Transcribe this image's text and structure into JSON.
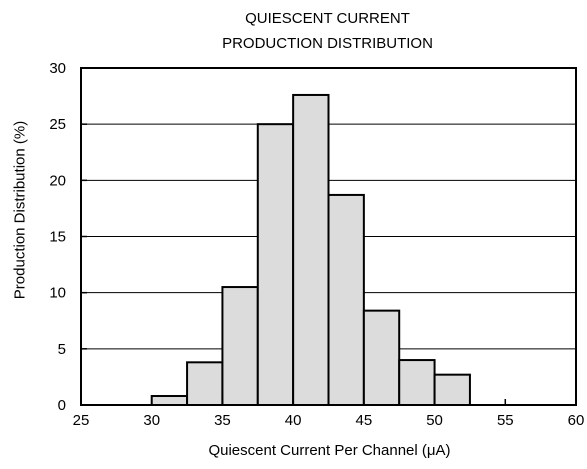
{
  "chart_data": {
    "type": "bar",
    "title_lines": [
      "QUIESCENT CURRENT",
      "PRODUCTION DISTRIBUTION"
    ],
    "xlabel": "Quiescent Current Per Channel (μA)",
    "ylabel": "Production Distribution (%)",
    "xlim": [
      25,
      60
    ],
    "ylim": [
      0,
      30
    ],
    "xticks": [
      25,
      30,
      35,
      40,
      45,
      50,
      55,
      60
    ],
    "yticks": [
      0,
      5,
      10,
      15,
      20,
      25,
      30
    ],
    "bin_width": 2.5,
    "bins": [
      {
        "x0": 30.0,
        "x1": 32.5,
        "value": 0.8
      },
      {
        "x0": 32.5,
        "x1": 35.0,
        "value": 3.8
      },
      {
        "x0": 35.0,
        "x1": 37.5,
        "value": 10.5
      },
      {
        "x0": 37.5,
        "x1": 40.0,
        "value": 25.0
      },
      {
        "x0": 40.0,
        "x1": 42.5,
        "value": 27.6
      },
      {
        "x0": 42.5,
        "x1": 45.0,
        "value": 18.7
      },
      {
        "x0": 45.0,
        "x1": 47.5,
        "value": 8.4
      },
      {
        "x0": 47.5,
        "x1": 50.0,
        "value": 4.0
      },
      {
        "x0": 50.0,
        "x1": 52.5,
        "value": 2.7
      }
    ],
    "grid": "horizontal",
    "bar_fill": "#dcdcdc",
    "bar_stroke": "#000000"
  }
}
